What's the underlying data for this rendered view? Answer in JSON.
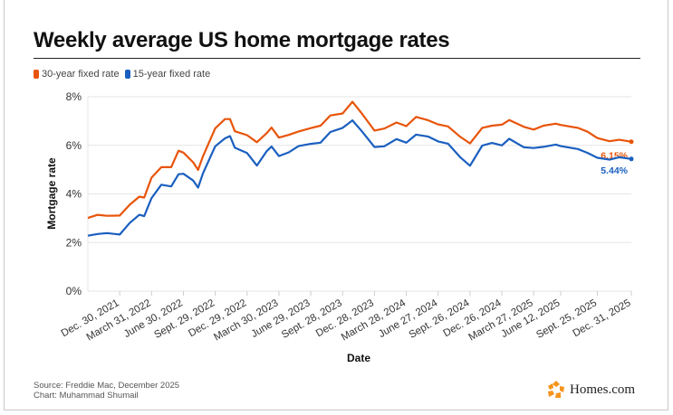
{
  "title": "Weekly average US home mortgage rates",
  "legend": [
    {
      "label": "30-year fixed rate",
      "color": "#e8540a"
    },
    {
      "label": "15-year fixed rate",
      "color": "#1a5fbf"
    }
  ],
  "source": {
    "line1": "Source: Freddie Mac, December 2025",
    "line2": "Chart: Muhammad Shumail"
  },
  "logo": {
    "text": "Homes.com",
    "color": "#f7941d",
    "icon": "homes-star-logo-icon"
  },
  "chart_data": {
    "type": "line",
    "title": "Weekly average US home mortgage rates",
    "xlabel": "Date",
    "ylabel": "Mortgage rate",
    "ylim": [
      0,
      8
    ],
    "yticks": [
      "0%",
      "2%",
      "4%",
      "6%",
      "8%"
    ],
    "xlim": [
      "2021-09-30",
      "2025-12-31"
    ],
    "grid": "horizontal",
    "legend_position": "top-left",
    "xticks": [
      {
        "date": "2021-12-30",
        "label": "Dec. 30, 2021"
      },
      {
        "date": "2022-03-31",
        "label": "March 31, 2022"
      },
      {
        "date": "2022-06-30",
        "label": "June 30, 2022"
      },
      {
        "date": "2022-09-29",
        "label": "Sept. 29, 2022"
      },
      {
        "date": "2022-12-29",
        "label": "Dec. 29, 2022"
      },
      {
        "date": "2023-03-30",
        "label": "March 30, 2023"
      },
      {
        "date": "2023-06-29",
        "label": "June 29, 2023"
      },
      {
        "date": "2023-09-28",
        "label": "Sept. 28, 2023"
      },
      {
        "date": "2023-12-28",
        "label": "Dec. 28, 2023"
      },
      {
        "date": "2024-03-28",
        "label": "March 28, 2024"
      },
      {
        "date": "2024-06-27",
        "label": "June 27, 2024"
      },
      {
        "date": "2024-09-26",
        "label": "Sept. 26, 2024"
      },
      {
        "date": "2024-12-26",
        "label": "Dec. 26, 2024"
      },
      {
        "date": "2025-03-27",
        "label": "March 27, 2025"
      },
      {
        "date": "2025-06-12",
        "label": "June 12, 2025"
      },
      {
        "date": "2025-09-25",
        "label": "Sept. 25, 2025"
      },
      {
        "date": "2025-12-31",
        "label": "Dec. 31, 2025"
      }
    ],
    "x": [
      "2021-09-30",
      "2021-10-28",
      "2021-11-24",
      "2021-12-30",
      "2022-01-27",
      "2022-02-24",
      "2022-03-10",
      "2022-03-31",
      "2022-04-28",
      "2022-05-26",
      "2022-06-16",
      "2022-06-30",
      "2022-07-28",
      "2022-08-11",
      "2022-08-25",
      "2022-09-29",
      "2022-10-27",
      "2022-11-10",
      "2022-11-24",
      "2022-12-29",
      "2023-01-26",
      "2023-02-23",
      "2023-03-09",
      "2023-03-30",
      "2023-04-27",
      "2023-05-25",
      "2023-06-29",
      "2023-07-27",
      "2023-08-24",
      "2023-09-28",
      "2023-10-26",
      "2023-11-23",
      "2023-12-28",
      "2024-01-25",
      "2024-02-29",
      "2024-03-28",
      "2024-04-25",
      "2024-05-30",
      "2024-06-27",
      "2024-07-25",
      "2024-08-29",
      "2024-09-26",
      "2024-10-31",
      "2024-11-28",
      "2024-12-26",
      "2025-01-16",
      "2025-02-27",
      "2025-03-27",
      "2025-04-24",
      "2025-05-29",
      "2025-06-12",
      "2025-07-31",
      "2025-08-28",
      "2025-09-25",
      "2025-10-30",
      "2025-11-26",
      "2025-12-31"
    ],
    "series": [
      {
        "name": "30-year fixed rate",
        "color": "#e8540a",
        "end_label": "6.15%",
        "values": [
          3.01,
          3.14,
          3.1,
          3.11,
          3.55,
          3.89,
          3.85,
          4.67,
          5.1,
          5.1,
          5.78,
          5.7,
          5.3,
          4.99,
          5.55,
          6.7,
          7.08,
          7.08,
          6.58,
          6.42,
          6.13,
          6.5,
          6.73,
          6.32,
          6.43,
          6.57,
          6.71,
          6.81,
          7.23,
          7.31,
          7.79,
          7.29,
          6.61,
          6.69,
          6.94,
          6.79,
          7.17,
          7.03,
          6.86,
          6.78,
          6.35,
          6.08,
          6.72,
          6.81,
          6.85,
          7.04,
          6.76,
          6.65,
          6.81,
          6.89,
          6.84,
          6.72,
          6.56,
          6.3,
          6.17,
          6.23,
          6.15
        ]
      },
      {
        "name": "15-year fixed rate",
        "color": "#1a5fbf",
        "end_label": "5.44%",
        "values": [
          2.28,
          2.35,
          2.39,
          2.33,
          2.8,
          3.14,
          3.09,
          3.83,
          4.38,
          4.31,
          4.81,
          4.83,
          4.55,
          4.26,
          4.85,
          5.96,
          6.29,
          6.38,
          5.9,
          5.68,
          5.17,
          5.76,
          5.95,
          5.56,
          5.71,
          5.97,
          6.06,
          6.11,
          6.55,
          6.72,
          7.03,
          6.56,
          5.93,
          5.96,
          6.26,
          6.11,
          6.44,
          6.36,
          6.16,
          6.07,
          5.51,
          5.16,
          5.99,
          6.1,
          6.0,
          6.27,
          5.92,
          5.89,
          5.94,
          6.03,
          5.97,
          5.85,
          5.69,
          5.49,
          5.41,
          5.51,
          5.44
        ]
      }
    ]
  }
}
